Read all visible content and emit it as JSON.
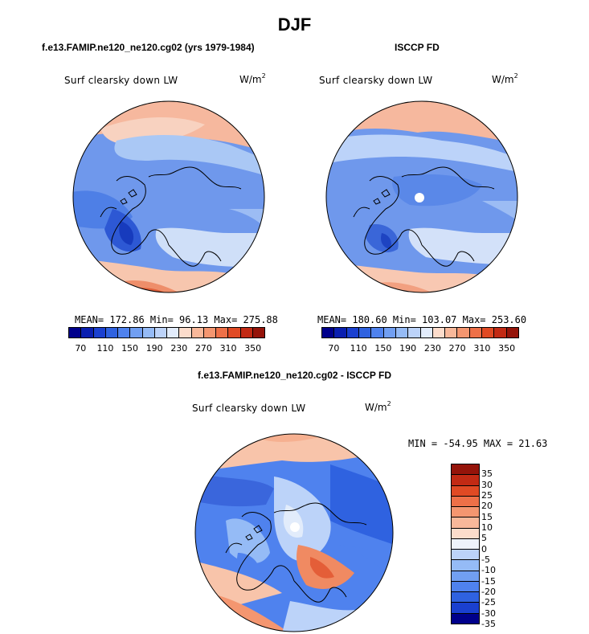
{
  "title": "DJF",
  "panels": [
    {
      "title": "f.e13.FAMIP.ne120_ne120.cg02 (yrs 1979-1984)",
      "variable": "Surf clearsky down LW",
      "units_base": "W/m",
      "units_exp": "2",
      "stats": "MEAN= 172.86  Min=  96.13  Max= 275.88"
    },
    {
      "title": "ISCCP FD",
      "variable": "Surf clearsky down LW",
      "units_base": "W/m",
      "units_exp": "2",
      "stats": "MEAN= 180.60  Min= 103.07  Max= 253.60"
    },
    {
      "title": "f.e13.FAMIP.ne120_ne120.cg02 - ISCCP FD",
      "variable": "Surf clearsky down LW",
      "units_base": "W/m",
      "units_exp": "2",
      "stats": "MIN = -54.95 MAX =  21.63"
    }
  ],
  "colorbar_abs": {
    "ticks": [
      "70",
      "110",
      "150",
      "190",
      "230",
      "270",
      "310",
      "350"
    ],
    "colors": [
      "#00008b",
      "#0a1fb0",
      "#1a40d0",
      "#2f62e0",
      "#4f82ee",
      "#719ff2",
      "#95bbf6",
      "#bcd3f9",
      "#e2ecfb",
      "#fcdccb",
      "#f8b89a",
      "#f49670",
      "#ee7048",
      "#e04a24",
      "#c22a14",
      "#95140a"
    ]
  },
  "colorbar_diff": {
    "ticks": [
      "35",
      "30",
      "25",
      "20",
      "15",
      "10",
      "5",
      "0",
      "-5",
      "-10",
      "-15",
      "-20",
      "-25",
      "-30",
      "-35"
    ],
    "colors": [
      "#95140a",
      "#c22a14",
      "#e04a24",
      "#ee7048",
      "#f49670",
      "#f8b89a",
      "#fcdccb",
      "#eef3fb",
      "#bcd3f9",
      "#95bbf6",
      "#719ff2",
      "#4f82ee",
      "#2f62e0",
      "#1a40d0",
      "#00008b"
    ]
  }
}
